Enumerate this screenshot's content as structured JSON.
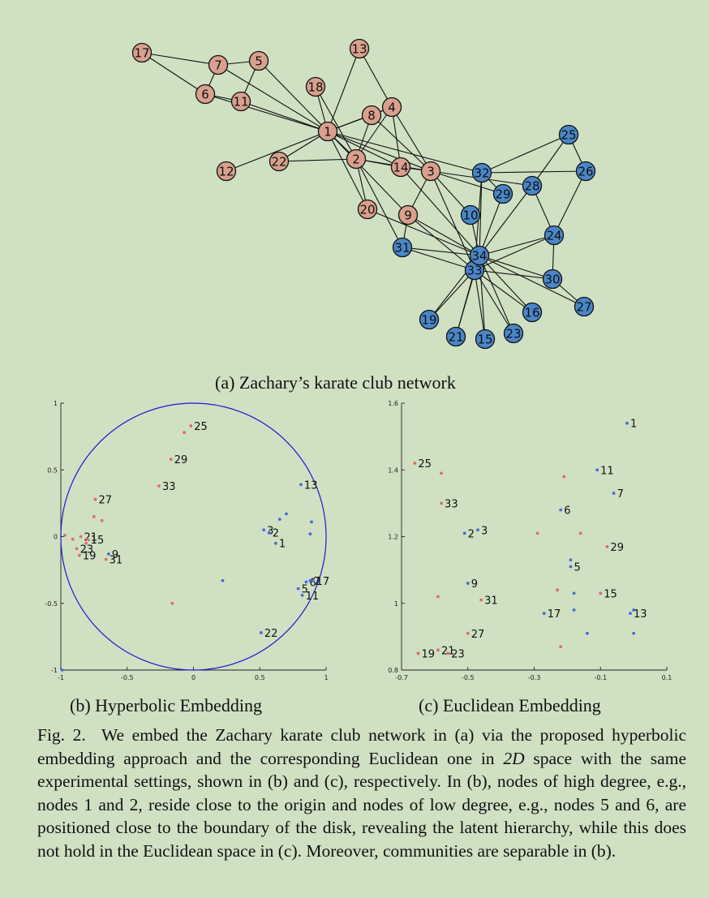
{
  "network": {
    "caption": "(a) Zachary’s karate club network",
    "colors": {
      "group_a": "#d9a08e",
      "group_b": "#4a86c8",
      "edge": "#111111"
    },
    "nodes": [
      {
        "id": "1",
        "group": "a"
      },
      {
        "id": "2",
        "group": "a"
      },
      {
        "id": "3",
        "group": "a"
      },
      {
        "id": "4",
        "group": "a"
      },
      {
        "id": "5",
        "group": "a"
      },
      {
        "id": "6",
        "group": "a"
      },
      {
        "id": "7",
        "group": "a"
      },
      {
        "id": "8",
        "group": "a"
      },
      {
        "id": "9",
        "group": "a"
      },
      {
        "id": "10",
        "group": "b"
      },
      {
        "id": "11",
        "group": "a"
      },
      {
        "id": "12",
        "group": "a"
      },
      {
        "id": "13",
        "group": "a"
      },
      {
        "id": "14",
        "group": "a"
      },
      {
        "id": "15",
        "group": "b"
      },
      {
        "id": "16",
        "group": "b"
      },
      {
        "id": "17",
        "group": "a"
      },
      {
        "id": "18",
        "group": "a"
      },
      {
        "id": "19",
        "group": "b"
      },
      {
        "id": "20",
        "group": "a"
      },
      {
        "id": "21",
        "group": "b"
      },
      {
        "id": "22",
        "group": "a"
      },
      {
        "id": "23",
        "group": "b"
      },
      {
        "id": "24",
        "group": "b"
      },
      {
        "id": "25",
        "group": "b"
      },
      {
        "id": "26",
        "group": "b"
      },
      {
        "id": "27",
        "group": "b"
      },
      {
        "id": "28",
        "group": "b"
      },
      {
        "id": "29",
        "group": "b"
      },
      {
        "id": "30",
        "group": "b"
      },
      {
        "id": "31",
        "group": "b"
      },
      {
        "id": "32",
        "group": "b"
      },
      {
        "id": "33",
        "group": "b"
      },
      {
        "id": "34",
        "group": "b"
      }
    ],
    "edges": [
      [
        "1",
        "2"
      ],
      [
        "1",
        "3"
      ],
      [
        "1",
        "4"
      ],
      [
        "1",
        "5"
      ],
      [
        "1",
        "6"
      ],
      [
        "1",
        "7"
      ],
      [
        "1",
        "8"
      ],
      [
        "1",
        "9"
      ],
      [
        "1",
        "11"
      ],
      [
        "1",
        "12"
      ],
      [
        "1",
        "13"
      ],
      [
        "1",
        "14"
      ],
      [
        "1",
        "18"
      ],
      [
        "1",
        "20"
      ],
      [
        "1",
        "22"
      ],
      [
        "1",
        "32"
      ],
      [
        "2",
        "3"
      ],
      [
        "2",
        "4"
      ],
      [
        "2",
        "8"
      ],
      [
        "2",
        "14"
      ],
      [
        "2",
        "18"
      ],
      [
        "2",
        "20"
      ],
      [
        "2",
        "22"
      ],
      [
        "2",
        "31"
      ],
      [
        "3",
        "4"
      ],
      [
        "3",
        "8"
      ],
      [
        "3",
        "9"
      ],
      [
        "3",
        "10"
      ],
      [
        "3",
        "14"
      ],
      [
        "3",
        "28"
      ],
      [
        "3",
        "29"
      ],
      [
        "3",
        "33"
      ],
      [
        "4",
        "8"
      ],
      [
        "4",
        "13"
      ],
      [
        "4",
        "14"
      ],
      [
        "5",
        "7"
      ],
      [
        "5",
        "11"
      ],
      [
        "6",
        "7"
      ],
      [
        "6",
        "11"
      ],
      [
        "6",
        "17"
      ],
      [
        "7",
        "17"
      ],
      [
        "9",
        "31"
      ],
      [
        "9",
        "33"
      ],
      [
        "9",
        "34"
      ],
      [
        "10",
        "34"
      ],
      [
        "14",
        "34"
      ],
      [
        "15",
        "33"
      ],
      [
        "15",
        "34"
      ],
      [
        "16",
        "33"
      ],
      [
        "16",
        "34"
      ],
      [
        "19",
        "33"
      ],
      [
        "19",
        "34"
      ],
      [
        "20",
        "34"
      ],
      [
        "21",
        "33"
      ],
      [
        "21",
        "34"
      ],
      [
        "23",
        "33"
      ],
      [
        "23",
        "34"
      ],
      [
        "24",
        "26"
      ],
      [
        "24",
        "28"
      ],
      [
        "24",
        "30"
      ],
      [
        "24",
        "33"
      ],
      [
        "24",
        "34"
      ],
      [
        "25",
        "26"
      ],
      [
        "25",
        "28"
      ],
      [
        "25",
        "32"
      ],
      [
        "26",
        "32"
      ],
      [
        "27",
        "30"
      ],
      [
        "27",
        "34"
      ],
      [
        "28",
        "34"
      ],
      [
        "29",
        "32"
      ],
      [
        "29",
        "34"
      ],
      [
        "30",
        "33"
      ],
      [
        "30",
        "34"
      ],
      [
        "31",
        "33"
      ],
      [
        "31",
        "34"
      ],
      [
        "32",
        "33"
      ],
      [
        "32",
        "34"
      ],
      [
        "33",
        "34"
      ]
    ]
  },
  "hyperbolic": {
    "caption": "(b) Hyperbolic Embedding",
    "xlim": [
      -1,
      1
    ],
    "ylim": [
      -1,
      1
    ],
    "xticks": [
      "-1",
      "-0.5",
      "0",
      "0.5",
      "1"
    ],
    "yticks": [
      "1",
      "0.5",
      "0",
      "-0.5",
      "-1"
    ],
    "disk_color": "#1a1ad0",
    "labeled_points": [
      {
        "label": "25",
        "x": -0.02,
        "y": 0.83,
        "group": "b"
      },
      {
        "label": "29",
        "x": -0.17,
        "y": 0.58,
        "group": "b"
      },
      {
        "label": "33",
        "x": -0.26,
        "y": 0.38,
        "group": "b"
      },
      {
        "label": "27",
        "x": -0.74,
        "y": 0.28,
        "group": "b"
      },
      {
        "label": "21",
        "x": -0.85,
        "y": 0.0,
        "group": "b"
      },
      {
        "label": "15",
        "x": -0.8,
        "y": -0.02,
        "group": "b"
      },
      {
        "label": "23",
        "x": -0.88,
        "y": -0.09,
        "group": "b"
      },
      {
        "label": "19",
        "x": -0.86,
        "y": -0.14,
        "group": "b"
      },
      {
        "label": "9",
        "x": -0.64,
        "y": -0.13,
        "group": "a"
      },
      {
        "label": "31",
        "x": -0.66,
        "y": -0.17,
        "group": "b"
      },
      {
        "label": "13",
        "x": 0.81,
        "y": 0.39,
        "group": "a"
      },
      {
        "label": "3",
        "x": 0.53,
        "y": 0.05,
        "group": "a"
      },
      {
        "label": "2",
        "x": 0.57,
        "y": 0.03,
        "group": "a"
      },
      {
        "label": "1",
        "x": 0.62,
        "y": -0.05,
        "group": "a"
      },
      {
        "label": "6",
        "x": 0.85,
        "y": -0.34,
        "group": "a"
      },
      {
        "label": "7",
        "x": 0.88,
        "y": -0.33,
        "group": "a"
      },
      {
        "label": "17",
        "x": 0.9,
        "y": -0.33,
        "group": "a"
      },
      {
        "label": "5",
        "x": 0.79,
        "y": -0.39,
        "group": "a"
      },
      {
        "label": "11",
        "x": 0.82,
        "y": -0.44,
        "group": "a"
      },
      {
        "label": "22",
        "x": 0.51,
        "y": -0.72,
        "group": "a"
      }
    ],
    "extra_points": [
      {
        "x": -0.99,
        "y": -1.0,
        "group": "a"
      },
      {
        "x": -0.97,
        "y": 0.01,
        "group": "b"
      },
      {
        "x": -0.91,
        "y": -0.02,
        "group": "b"
      },
      {
        "x": -0.81,
        "y": -0.05,
        "group": "b"
      },
      {
        "x": -0.75,
        "y": 0.15,
        "group": "b"
      },
      {
        "x": -0.69,
        "y": 0.12,
        "group": "b"
      },
      {
        "x": -0.07,
        "y": 0.78,
        "group": "b"
      },
      {
        "x": 0.65,
        "y": 0.13,
        "group": "a"
      },
      {
        "x": 0.7,
        "y": 0.17,
        "group": "a"
      },
      {
        "x": 0.89,
        "y": 0.11,
        "group": "a"
      },
      {
        "x": 0.88,
        "y": 0.02,
        "group": "a"
      },
      {
        "x": 0.22,
        "y": -0.33,
        "group": "a"
      },
      {
        "x": -0.16,
        "y": -0.5,
        "group": "b"
      }
    ]
  },
  "euclidean": {
    "caption": "(c) Euclidean Embedding",
    "xlim": [
      -0.7,
      0.1
    ],
    "ylim": [
      0.8,
      1.6
    ],
    "xticks": [
      "-0.7",
      "-0.5",
      "-0.3",
      "-0.1",
      "0.1"
    ],
    "yticks": [
      "1.6",
      "1.4",
      "1.2",
      "1",
      "0.8"
    ],
    "labeled_points": [
      {
        "label": "1",
        "x": -0.02,
        "y": 1.54,
        "group": "a"
      },
      {
        "label": "25",
        "x": -0.66,
        "y": 1.42,
        "group": "b"
      },
      {
        "label": "11",
        "x": -0.11,
        "y": 1.4,
        "group": "a"
      },
      {
        "label": "7",
        "x": -0.06,
        "y": 1.33,
        "group": "a"
      },
      {
        "label": "33",
        "x": -0.58,
        "y": 1.3,
        "group": "b"
      },
      {
        "label": "6",
        "x": -0.22,
        "y": 1.28,
        "group": "a"
      },
      {
        "label": "2",
        "x": -0.51,
        "y": 1.21,
        "group": "a"
      },
      {
        "label": "3",
        "x": -0.47,
        "y": 1.22,
        "group": "a"
      },
      {
        "label": "29",
        "x": -0.08,
        "y": 1.17,
        "group": "b"
      },
      {
        "label": "5",
        "x": -0.19,
        "y": 1.11,
        "group": "a"
      },
      {
        "label": "9",
        "x": -0.5,
        "y": 1.06,
        "group": "a"
      },
      {
        "label": "15",
        "x": -0.1,
        "y": 1.03,
        "group": "b"
      },
      {
        "label": "31",
        "x": -0.46,
        "y": 1.01,
        "group": "b"
      },
      {
        "label": "17",
        "x": -0.27,
        "y": 0.97,
        "group": "a"
      },
      {
        "label": "13",
        "x": -0.01,
        "y": 0.97,
        "group": "a"
      },
      {
        "label": "27",
        "x": -0.5,
        "y": 0.91,
        "group": "b"
      },
      {
        "label": "19",
        "x": -0.65,
        "y": 0.85,
        "group": "b"
      },
      {
        "label": "21",
        "x": -0.59,
        "y": 0.86,
        "group": "b"
      },
      {
        "label": "23",
        "x": -0.56,
        "y": 0.85,
        "group": "b"
      }
    ],
    "extra_points": [
      {
        "x": -0.58,
        "y": 1.39,
        "group": "b"
      },
      {
        "x": -0.21,
        "y": 1.38,
        "group": "b"
      },
      {
        "x": -0.29,
        "y": 1.21,
        "group": "b"
      },
      {
        "x": -0.16,
        "y": 1.21,
        "group": "b"
      },
      {
        "x": -0.19,
        "y": 1.13,
        "group": "a"
      },
      {
        "x": -0.23,
        "y": 1.04,
        "group": "b"
      },
      {
        "x": -0.18,
        "y": 1.03,
        "group": "a"
      },
      {
        "x": -0.59,
        "y": 1.02,
        "group": "b"
      },
      {
        "x": -0.18,
        "y": 0.98,
        "group": "a"
      },
      {
        "x": -0.14,
        "y": 0.91,
        "group": "a"
      },
      {
        "x": 0.0,
        "y": 0.98,
        "group": "a"
      },
      {
        "x": 0.0,
        "y": 0.91,
        "group": "a"
      },
      {
        "x": -0.22,
        "y": 0.87,
        "group": "b"
      }
    ]
  },
  "caption": {
    "prefix": "Fig. 2.",
    "part1": "We embed the Zachary karate club network in (a) via the proposed hyperbolic embedding approach and the corresponding Euclidean one in ",
    "dim": "2D",
    "part2": " space with the same experimental settings, shown in (b) and (c), respectively. In (b), nodes of high degree, e.g., nodes 1 and 2, reside close to the origin and nodes of low degree, e.g., nodes 5 and 6, are positioned close to the boundary of the disk, revealing the latent hierarchy, while this does not hold in the Euclidean space in (c). Moreover, communities are separable in (b)."
  },
  "chart_data": [
    {
      "type": "scatter",
      "title": "(b) Hyperbolic Embedding",
      "xlim": [
        -1,
        1
      ],
      "ylim": [
        -1,
        1
      ],
      "series": [
        {
          "name": "",
          "points_from": "hyperbolic.labeled_points"
        }
      ]
    },
    {
      "type": "scatter",
      "title": "(c) Euclidean Embedding",
      "xlim": [
        -0.7,
        0.1
      ],
      "ylim": [
        0.8,
        1.6
      ],
      "series": [
        {
          "name": "",
          "points_from": "euclidean.labeled_points"
        }
      ]
    }
  ]
}
